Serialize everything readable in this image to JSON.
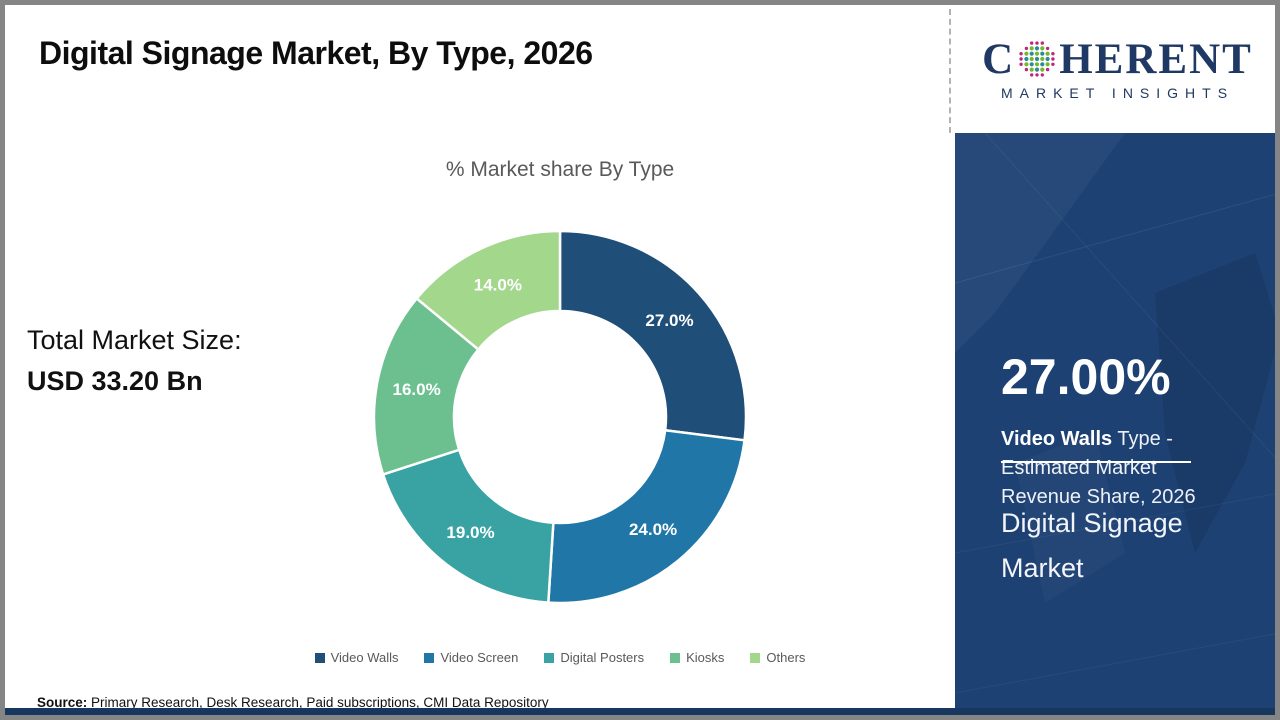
{
  "slide": {
    "title": "Digital Signage Market, By Type, 2026",
    "source_label": "Source:",
    "source_text": " Primary Research, Desk Research, Paid subscriptions, CMI Data Repository"
  },
  "left_stats": {
    "label": "Total Market Size:",
    "value": "USD 33.20 Bn"
  },
  "chart_data": {
    "type": "pie",
    "subtype": "donut",
    "title": "% Market share By Type",
    "categories": [
      "Video Walls",
      "Video Screen",
      "Digital Posters",
      "Kiosks",
      "Others"
    ],
    "values": [
      27.0,
      24.0,
      19.0,
      16.0,
      14.0
    ],
    "data_labels": [
      "27.0%",
      "24.0%",
      "19.0%",
      "16.0%",
      "14.0%"
    ],
    "colors": [
      "#1F4E79",
      "#2077A7",
      "#38A3A2",
      "#6CC08F",
      "#A2D78C"
    ],
    "start_angle": "top",
    "direction": "clockwise",
    "legend_position": "bottom",
    "hole_radius_ratio": 0.57
  },
  "logo": {
    "brand_prefix": "C",
    "brand_suffix": "HERENT",
    "brand_subtitle": "MARKET INSIGHTS",
    "brand_color": "#1F3864"
  },
  "highlight_panel": {
    "bg_color": "#1D4173",
    "value": "27.00%",
    "caption_bold": "Video Walls",
    "caption_line1_rest": " Type -",
    "caption_line2": "Estimated Market",
    "caption_line3": "Revenue Share, 2026",
    "footer_line1": "Digital Signage",
    "footer_line2": "Market"
  }
}
